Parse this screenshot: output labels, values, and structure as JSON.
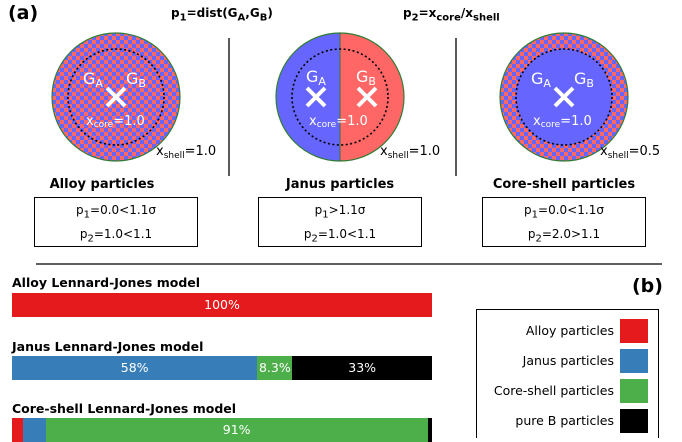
{
  "panel_a_label": "(a)",
  "panel_b_label": "(b)",
  "p1_header": {
    "main": "p",
    "sub": "1",
    "rest": "=dist(G",
    "a": "A",
    "mid": ",G",
    "b": "B",
    "close": ")"
  },
  "p2_header": {
    "main": "p",
    "sub": "2",
    "rest": "=x",
    "core": "core",
    "slash": "/x",
    "shell": "shell"
  },
  "particles": [
    {
      "title": "Alloy particles",
      "ga": "G",
      "ga_sub": "A",
      "gb": "G",
      "gb_sub": "B",
      "xcore_main": "x",
      "xcore_sub": "core",
      "xcore_val": "=1.0",
      "xshell_main": "x",
      "xshell_sub": "shell",
      "xshell_val": "=1.0",
      "criteria": [
        {
          "p": "p",
          "sub": "1",
          "rest": "=0.0<1.1σ"
        },
        {
          "p": "p",
          "sub": "2",
          "rest": "=1.0<1.1"
        }
      ]
    },
    {
      "title": "Janus particles",
      "ga": "G",
      "ga_sub": "A",
      "gb": "G",
      "gb_sub": "B",
      "xcore_main": "x",
      "xcore_sub": "core",
      "xcore_val": "=1.0",
      "xshell_main": "x",
      "xshell_sub": "shell",
      "xshell_val": "=1.0",
      "criteria": [
        {
          "p": "p",
          "sub": "1",
          "rest": ">1.1σ"
        },
        {
          "p": "p",
          "sub": "2",
          "rest": "=1.0<1.1"
        }
      ]
    },
    {
      "title": "Core-shell particles",
      "ga": "G",
      "ga_sub": "A",
      "gb": "G",
      "gb_sub": "B",
      "xcore_main": "x",
      "xcore_sub": "core",
      "xcore_val": "=1.0",
      "xshell_main": "x",
      "xshell_sub": "shell",
      "xshell_val": "=0.5",
      "criteria": [
        {
          "p": "p",
          "sub": "1",
          "rest": "=0.0<1.1σ"
        },
        {
          "p": "p",
          "sub": "2",
          "rest": "=2.0>1.1"
        }
      ]
    }
  ],
  "models": [
    {
      "title": "Alloy Lennard-Jones model",
      "segments": [
        {
          "category": "alloy",
          "value": 100,
          "label": "100%"
        }
      ]
    },
    {
      "title": "Janus Lennard-Jones model",
      "segments": [
        {
          "category": "janus",
          "value": 58,
          "label": "58%"
        },
        {
          "category": "coreshell",
          "value": 8.3,
          "label": "8.3%"
        },
        {
          "category": "pureb",
          "value": 33,
          "label": "33%"
        }
      ]
    },
    {
      "title": "Core-shell Lennard-Jones model",
      "segments": [
        {
          "category": "alloy",
          "value": 2.5,
          "label": ""
        },
        {
          "category": "janus",
          "value": 5.5,
          "label": ""
        },
        {
          "category": "coreshell",
          "value": 91,
          "label": "91%"
        },
        {
          "category": "pureb",
          "value": 1,
          "label": ""
        }
      ]
    }
  ],
  "legend": [
    {
      "category": "alloy",
      "label": "Alloy particles"
    },
    {
      "category": "janus",
      "label": "Janus particles"
    },
    {
      "category": "coreshell",
      "label": "Core-shell particles"
    },
    {
      "category": "pureb",
      "label": "pure B particles"
    }
  ],
  "colors": {
    "alloy": "#e41a1c",
    "janus": "#377eb8",
    "coreshell": "#4daf4a",
    "pureb": "#000000",
    "particle_red": "#ff6666",
    "particle_blue": "#6666ff",
    "particle_outline": "#2e7d32"
  }
}
